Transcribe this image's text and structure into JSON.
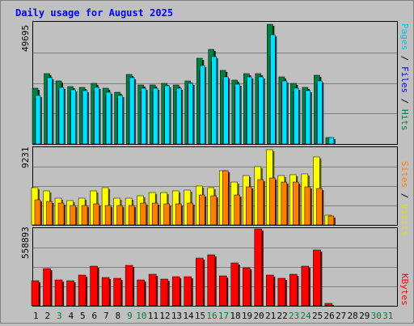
{
  "chart_data": [
    {
      "type": "bar",
      "title": "Daily usage for August 2025",
      "panel": "hits-files-pages",
      "categories": [
        "1",
        "2",
        "3",
        "4",
        "5",
        "6",
        "7",
        "8",
        "9",
        "10",
        "11",
        "12",
        "13",
        "14",
        "15",
        "16",
        "17",
        "18",
        "19",
        "20",
        "21",
        "22",
        "23",
        "24",
        "25",
        "26",
        "27",
        "28",
        "29",
        "30",
        "31"
      ],
      "y_max_label": "49695",
      "ylim": [
        0,
        49695
      ],
      "series": [
        {
          "name": "Hits",
          "color": "#008040",
          "values": [
            22600,
            28700,
            25600,
            23500,
            23200,
            24800,
            22600,
            21200,
            28400,
            24000,
            24000,
            24600,
            24000,
            25800,
            34800,
            38400,
            29800,
            26000,
            28700,
            28700,
            48600,
            27400,
            24800,
            23200,
            28000,
            2700,
            0,
            0,
            0,
            0,
            0
          ]
        },
        {
          "name": "Files",
          "color": "#0000ff",
          "values": [
            18900,
            25600,
            21800,
            21200,
            20800,
            21500,
            19800,
            18700,
            25500,
            21500,
            21500,
            22800,
            21500,
            23500,
            29800,
            33600,
            26000,
            23400,
            25600,
            25600,
            36000,
            25000,
            21500,
            20800,
            24800,
            0,
            0,
            0,
            0,
            0,
            0
          ]
        },
        {
          "name": "Pages",
          "color": "#00e0ff",
          "values": [
            19800,
            26900,
            23000,
            22200,
            21800,
            23200,
            21200,
            19800,
            26900,
            22800,
            22800,
            23600,
            22800,
            24600,
            31800,
            35400,
            27300,
            24200,
            27300,
            27300,
            44400,
            25800,
            22800,
            21800,
            25800,
            2600,
            0,
            0,
            0,
            0,
            0
          ]
        }
      ]
    },
    {
      "type": "bar",
      "panel": "visits-sites",
      "categories": [
        "1",
        "2",
        "3",
        "4",
        "5",
        "6",
        "7",
        "8",
        "9",
        "10",
        "11",
        "12",
        "13",
        "14",
        "15",
        "16",
        "17",
        "18",
        "19",
        "20",
        "21",
        "22",
        "23",
        "24",
        "25",
        "26",
        "27",
        "28",
        "29",
        "30",
        "31"
      ],
      "y_max_label": "9231",
      "ylim": [
        0,
        9231
      ],
      "series": [
        {
          "name": "Visits",
          "color": "#ffff00",
          "values": [
            4400,
            4000,
            3200,
            2900,
            3200,
            4000,
            4400,
            3200,
            3200,
            3500,
            3800,
            3800,
            4000,
            4100,
            4600,
            4400,
            6400,
            5100,
            5900,
            6900,
            8900,
            5900,
            6000,
            6100,
            8100,
            1200,
            0,
            0,
            0,
            0,
            0
          ]
        },
        {
          "name": "Sites",
          "color": "#ff8000",
          "values": [
            3000,
            2800,
            2600,
            2300,
            2300,
            2500,
            2300,
            2300,
            2300,
            2600,
            2600,
            2500,
            2500,
            2600,
            3600,
            3500,
            6400,
            3600,
            4500,
            5400,
            5600,
            5100,
            5100,
            4500,
            4300,
            1100,
            0,
            0,
            0,
            0,
            0
          ]
        }
      ]
    },
    {
      "type": "bar",
      "panel": "kbytes",
      "categories": [
        "1",
        "2",
        "3",
        "4",
        "5",
        "6",
        "7",
        "8",
        "9",
        "10",
        "11",
        "12",
        "13",
        "14",
        "15",
        "16",
        "17",
        "18",
        "19",
        "20",
        "21",
        "22",
        "23",
        "24",
        "25",
        "26",
        "27",
        "28",
        "29",
        "30",
        "31"
      ],
      "y_max_label": "558893",
      "ylim": [
        0,
        558893
      ],
      "series": [
        {
          "name": "KBytes",
          "color": "#ff0000",
          "values": [
            178000,
            270000,
            184000,
            178000,
            221000,
            283000,
            202000,
            196000,
            289000,
            184000,
            227000,
            190000,
            209000,
            209000,
            344000,
            369000,
            215000,
            307000,
            276000,
            553000,
            221000,
            196000,
            227000,
            283000,
            400000,
            18000,
            0,
            0,
            0,
            0,
            0
          ]
        }
      ]
    }
  ],
  "x_labels": [
    {
      "text": "1",
      "color": "#000000"
    },
    {
      "text": "2",
      "color": "#000000"
    },
    {
      "text": "3",
      "color": "#008040"
    },
    {
      "text": "4",
      "color": "#000000"
    },
    {
      "text": "5",
      "color": "#000000"
    },
    {
      "text": "6",
      "color": "#000000"
    },
    {
      "text": "7",
      "color": "#000000"
    },
    {
      "text": "8",
      "color": "#000000"
    },
    {
      "text": "9",
      "color": "#008040"
    },
    {
      "text": "10",
      "color": "#008040"
    },
    {
      "text": "11",
      "color": "#000000"
    },
    {
      "text": "12",
      "color": "#000000"
    },
    {
      "text": "13",
      "color": "#000000"
    },
    {
      "text": "14",
      "color": "#000000"
    },
    {
      "text": "15",
      "color": "#000000"
    },
    {
      "text": "16",
      "color": "#008040"
    },
    {
      "text": "17",
      "color": "#008040"
    },
    {
      "text": "18",
      "color": "#000000"
    },
    {
      "text": "19",
      "color": "#000000"
    },
    {
      "text": "20",
      "color": "#000000"
    },
    {
      "text": "21",
      "color": "#000000"
    },
    {
      "text": "22",
      "color": "#000000"
    },
    {
      "text": "23",
      "color": "#008040"
    },
    {
      "text": "24",
      "color": "#008040"
    },
    {
      "text": "25",
      "color": "#000000"
    },
    {
      "text": "26",
      "color": "#000000"
    },
    {
      "text": "27",
      "color": "#000000"
    },
    {
      "text": "28",
      "color": "#000000"
    },
    {
      "text": "29",
      "color": "#000000"
    },
    {
      "text": "30",
      "color": "#008040"
    },
    {
      "text": "31",
      "color": "#008040"
    }
  ],
  "legend_right": {
    "top": [
      {
        "text": "Pages",
        "color": "#00c0e0"
      },
      {
        "text": " / ",
        "color": "#000000"
      },
      {
        "text": "Files",
        "color": "#0000ff"
      },
      {
        "text": " / ",
        "color": "#000000"
      },
      {
        "text": "Hits",
        "color": "#008040"
      }
    ],
    "middle": [
      {
        "text": "Sites",
        "color": "#ff8000"
      },
      {
        "text": " / ",
        "color": "#000000"
      },
      {
        "text": "Visits",
        "color": "#e0e000"
      }
    ],
    "bottom": [
      {
        "text": "KBytes",
        "color": "#ff0000"
      }
    ]
  },
  "colors": {
    "title": "#0000ff",
    "plot_bg": "#c0c0c0",
    "gridline": "#808080"
  }
}
